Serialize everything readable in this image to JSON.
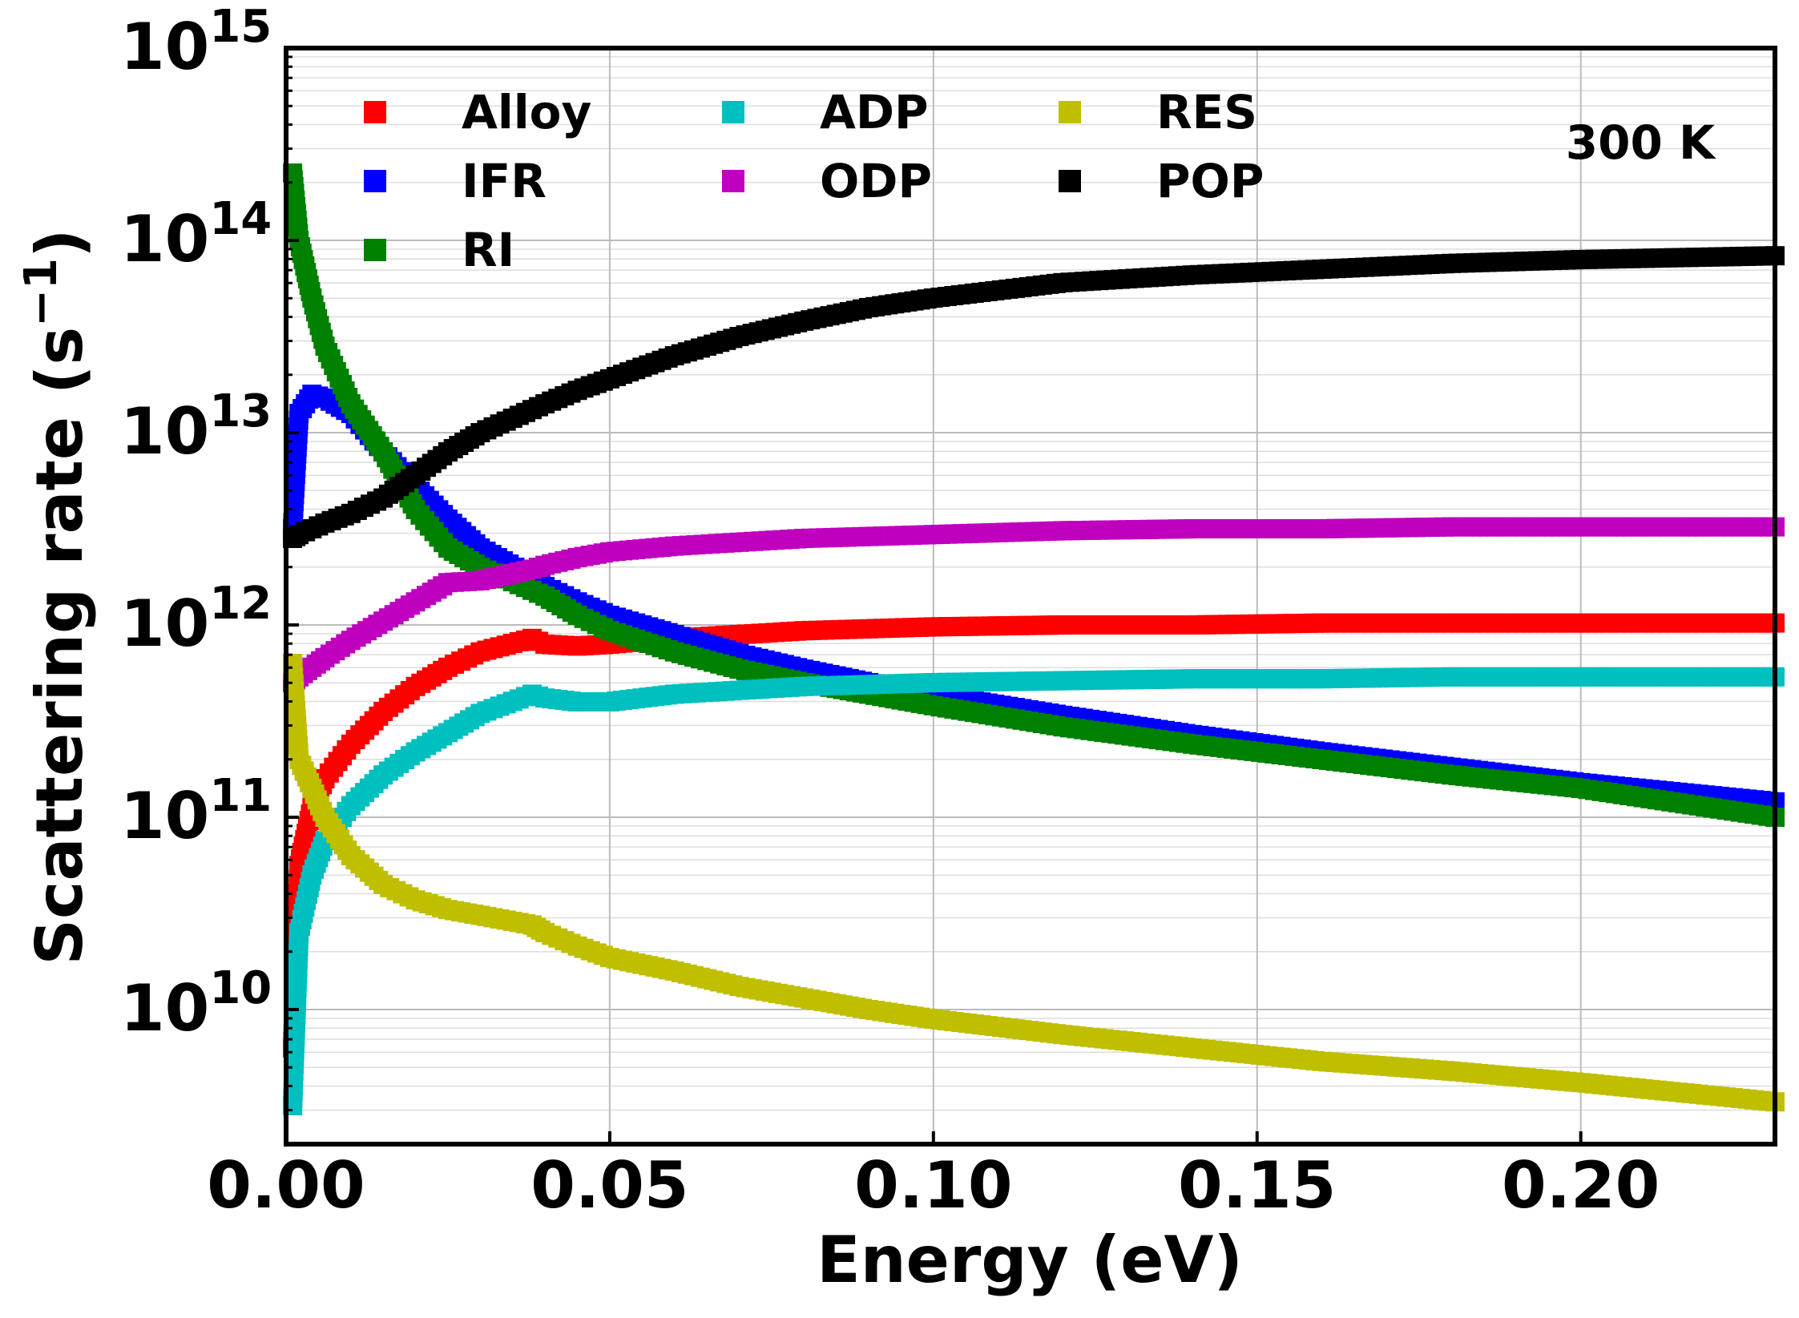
{
  "chart_data": {
    "type": "scatter",
    "title": "",
    "xlabel": "Energy (eV)",
    "ylabel_main": "Scattering rate (s",
    "ylabel_sup": "−1",
    "ylabel_close": ")",
    "annotation": "300 K",
    "xlim": [
      0,
      0.23
    ],
    "ylim_log10": [
      9.3,
      15
    ],
    "grid": true,
    "legend_position": "top",
    "x_ticks": [
      {
        "value": 0.0,
        "label": "0.00"
      },
      {
        "value": 0.05,
        "label": "0.05"
      },
      {
        "value": 0.1,
        "label": "0.10"
      },
      {
        "value": 0.15,
        "label": "0.15"
      },
      {
        "value": 0.2,
        "label": "0.20"
      }
    ],
    "y_ticks": [
      {
        "exp": 10,
        "base": "10",
        "sup": "10"
      },
      {
        "exp": 11,
        "base": "10",
        "sup": "11"
      },
      {
        "exp": 12,
        "base": "10",
        "sup": "12"
      },
      {
        "exp": 13,
        "base": "10",
        "sup": "13"
      },
      {
        "exp": 14,
        "base": "10",
        "sup": "14"
      },
      {
        "exp": 15,
        "base": "10",
        "sup": "15"
      }
    ],
    "x": [
      0.001,
      0.002,
      0.004,
      0.006,
      0.01,
      0.015,
      0.02,
      0.025,
      0.03,
      0.038,
      0.04,
      0.045,
      0.05,
      0.06,
      0.07,
      0.08,
      0.09,
      0.1,
      0.12,
      0.14,
      0.16,
      0.18,
      0.2,
      0.23
    ],
    "series": [
      {
        "name": "Alloy",
        "color": "#ff0000",
        "log10_values": [
          9.8,
          10.75,
          11.05,
          11.2,
          11.38,
          11.55,
          11.68,
          11.78,
          11.86,
          11.93,
          11.9,
          11.89,
          11.9,
          11.93,
          11.95,
          11.97,
          11.98,
          11.99,
          12.0,
          12.0,
          12.01,
          12.01,
          12.01,
          12.01
        ]
      },
      {
        "name": "IFR",
        "color": "#0000ff",
        "log10_values": [
          12.5,
          13.1,
          13.2,
          13.18,
          13.1,
          12.9,
          12.72,
          12.55,
          12.4,
          12.25,
          12.2,
          12.12,
          12.05,
          11.95,
          11.85,
          11.77,
          11.7,
          11.64,
          11.53,
          11.43,
          11.34,
          11.26,
          11.18,
          11.08
        ]
      },
      {
        "name": "RI",
        "color": "#008000",
        "log10_values": [
          14.35,
          14.0,
          13.7,
          13.45,
          13.15,
          12.9,
          12.6,
          12.4,
          12.3,
          12.18,
          12.15,
          12.05,
          11.97,
          11.86,
          11.77,
          11.7,
          11.64,
          11.58,
          11.47,
          11.38,
          11.3,
          11.22,
          11.15,
          11.0
        ]
      },
      {
        "name": "ADP",
        "color": "#00bfbf",
        "log10_values": [
          9.5,
          10.4,
          10.7,
          10.88,
          11.06,
          11.22,
          11.34,
          11.44,
          11.54,
          11.64,
          11.62,
          11.6,
          11.6,
          11.64,
          11.66,
          11.68,
          11.69,
          11.7,
          11.71,
          11.72,
          11.72,
          11.73,
          11.73,
          11.73
        ]
      },
      {
        "name": "ODP",
        "color": "#bf00bf",
        "log10_values": [
          11.7,
          11.73,
          11.78,
          11.83,
          11.92,
          12.02,
          12.12,
          12.22,
          12.23,
          12.29,
          12.31,
          12.35,
          12.38,
          12.41,
          12.43,
          12.45,
          12.46,
          12.47,
          12.49,
          12.5,
          12.5,
          12.51,
          12.51,
          12.51
        ]
      },
      {
        "name": "RES",
        "color": "#bfbf00",
        "log10_values": [
          11.8,
          11.3,
          11.15,
          11.0,
          10.8,
          10.65,
          10.57,
          10.52,
          10.49,
          10.44,
          10.4,
          10.33,
          10.27,
          10.2,
          10.12,
          10.06,
          10.0,
          9.95,
          9.87,
          9.8,
          9.73,
          9.68,
          9.62,
          9.52
        ]
      },
      {
        "name": "POP",
        "color": "#000000",
        "log10_values": [
          12.45,
          12.47,
          12.5,
          12.53,
          12.58,
          12.66,
          12.78,
          12.9,
          13.0,
          13.12,
          13.15,
          13.22,
          13.28,
          13.4,
          13.5,
          13.58,
          13.65,
          13.7,
          13.78,
          13.82,
          13.85,
          13.88,
          13.9,
          13.92
        ]
      }
    ]
  }
}
